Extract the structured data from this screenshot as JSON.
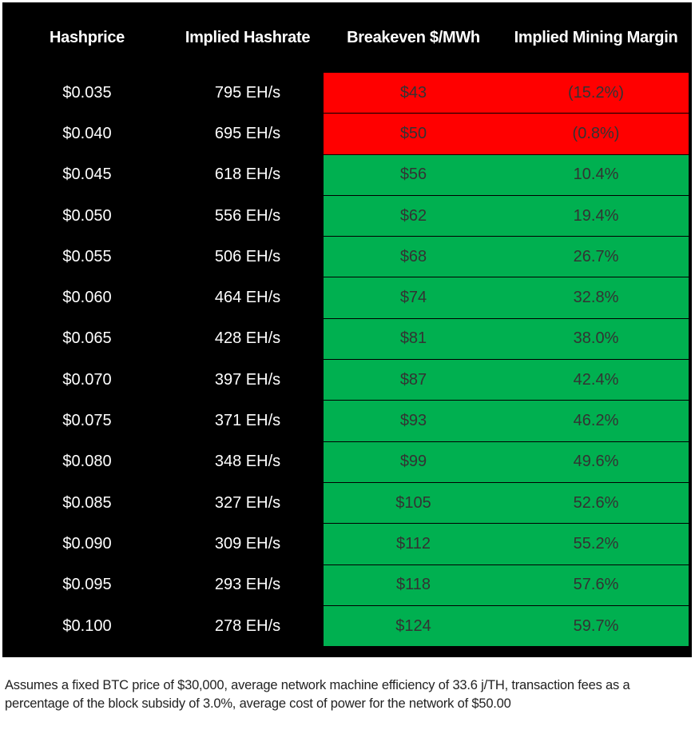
{
  "table": {
    "headers": [
      "Hashprice",
      "Implied Hashrate",
      "Breakeven $/MWh",
      "Implied Mining Margin"
    ],
    "rows": [
      [
        "$0.035",
        "795 EH/s",
        "$43",
        "(15.2%)"
      ],
      [
        "$0.040",
        "695 EH/s",
        "$50",
        "(0.8%)"
      ],
      [
        "$0.045",
        "618 EH/s",
        "$56",
        "10.4%"
      ],
      [
        "$0.050",
        "556 EH/s",
        "$62",
        "19.4%"
      ],
      [
        "$0.055",
        "506 EH/s",
        "$68",
        "26.7%"
      ],
      [
        "$0.060",
        "464 EH/s",
        "$74",
        "32.8%"
      ],
      [
        "$0.065",
        "428 EH/s",
        "$81",
        "38.0%"
      ],
      [
        "$0.070",
        "397 EH/s",
        "$87",
        "42.4%"
      ],
      [
        "$0.075",
        "371 EH/s",
        "$93",
        "46.2%"
      ],
      [
        "$0.080",
        "348 EH/s",
        "$99",
        "49.6%"
      ],
      [
        "$0.085",
        "327 EH/s",
        "$105",
        "52.6%"
      ],
      [
        "$0.090",
        "309 EH/s",
        "$112",
        "55.2%"
      ],
      [
        "$0.095",
        "293 EH/s",
        "$118",
        "57.6%"
      ],
      [
        "$0.100",
        "278 EH/s",
        "$124",
        "59.7%"
      ]
    ],
    "row_colors": [
      "#ff0000",
      "#ff0000",
      "#00b050",
      "#00b050",
      "#00b050",
      "#00b050",
      "#00b050",
      "#00b050",
      "#00b050",
      "#00b050",
      "#00b050",
      "#00b050",
      "#00b050",
      "#00b050"
    ]
  },
  "footnote": "Assumes a fixed BTC price of $30,000, average network machine efficiency of 33.6 j/TH, transaction fees as a percentage of the block subsidy of 3.0%, average cost of power for the network of $50.00"
}
